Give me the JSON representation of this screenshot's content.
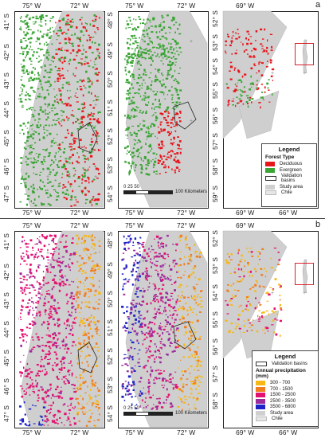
{
  "panels": [
    {
      "letter": "a",
      "top_lon": [
        "75° W",
        "72° W",
        "75° W",
        "72° W",
        "69° W"
      ],
      "bottom_lon": [
        "75° W",
        "72° W",
        "75° W",
        "72° W",
        "69° W",
        "66° W"
      ],
      "left_lat_1": [
        "41° S",
        "42° S",
        "43° S",
        "44° S",
        "45° S",
        "46° S",
        "47° S"
      ],
      "left_lat_2": [
        "48° S",
        "49° S",
        "50° S",
        "51° S",
        "52° S",
        "53° S",
        "54° S"
      ],
      "right_lat": [
        "52° S",
        "53° S",
        "54° S",
        "55° S",
        "56° S",
        "57° S",
        "58° S",
        "59° S"
      ],
      "scale": {
        "ticks": "0  25 50",
        "label": "100 Kilometers"
      },
      "legend": {
        "title": "Legend",
        "subtitle": "Forest Type",
        "items": [
          {
            "label": "Deciduous",
            "color": "#e8151b"
          },
          {
            "label": "Evergreen",
            "color": "#3aa535"
          },
          {
            "label": "Validation basins",
            "color": "#ffffff"
          },
          {
            "label": "Study area",
            "color": "#cfcfcf"
          },
          {
            "label": "Chile",
            "color": "#e6e6e6"
          }
        ]
      }
    },
    {
      "letter": "b",
      "top_lon": [
        "75° W",
        "72° W",
        "75° W",
        "72° W",
        "69° W"
      ],
      "bottom_lon": [
        "75° W",
        "72° W",
        "75° W",
        "72° W",
        "69° W",
        "66° W"
      ],
      "left_lat_1": [
        "41° S",
        "42° S",
        "43° S",
        "44° S",
        "45° S",
        "46° S",
        "47° S"
      ],
      "left_lat_2": [
        "48° S",
        "49° S",
        "50° S",
        "51° S",
        "52° S",
        "53° S",
        "54° S"
      ],
      "right_lat": [
        "52° S",
        "53° S",
        "54° S",
        "55° S",
        "56° S",
        "57° S",
        "58° S"
      ],
      "scale": {
        "ticks": "0  25 50",
        "label": "100 Kilometers"
      },
      "legend": {
        "title": "Legend",
        "subtitle": "Annual precipitation (mm)",
        "validation": "Validation basins",
        "items": [
          {
            "label": "300 - 700",
            "color": "#f6b817"
          },
          {
            "label": "700 - 1500",
            "color": "#f07d1e"
          },
          {
            "label": "1500 - 2500",
            "color": "#e4106f"
          },
          {
            "label": "2500 - 3500",
            "color": "#9b2a9c"
          },
          {
            "label": "3500 - 6800",
            "color": "#1d23c6"
          },
          {
            "label": "Study area",
            "color": "#cfcfcf"
          },
          {
            "label": "Chile",
            "color": "#e6e6e6"
          }
        ]
      }
    }
  ]
}
